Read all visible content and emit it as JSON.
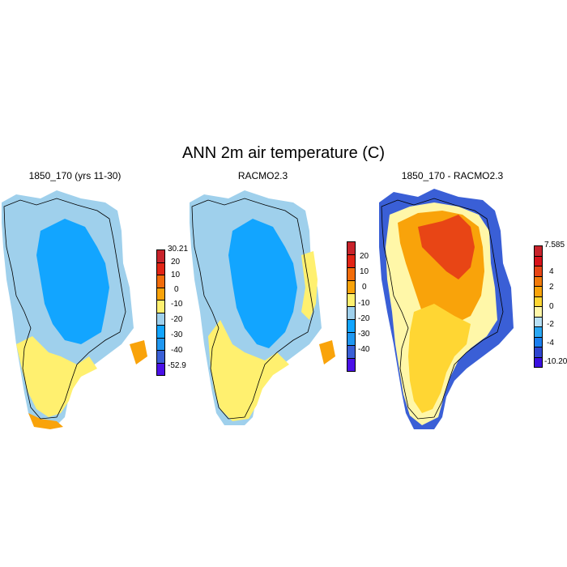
{
  "title": "ANN 2m air temperature (C)",
  "panels": [
    {
      "title": "1850_170 (yrs 11-30)",
      "palette": [
        "#4a10e8",
        "#3a5fd6",
        "#1f97f0",
        "#12a5ff",
        "#9fd0ec",
        "#fff06f",
        "#f9a30a",
        "#f26c0a",
        "#e22415",
        "#c8232b"
      ],
      "labels": [
        "30.21",
        "20",
        "10",
        "0",
        "-10",
        "-20",
        "-30",
        "-40",
        "-52.9"
      ],
      "fills": {
        "interior": "#12a5ff",
        "middle": "#9fd0ec",
        "coast": "#fff06f",
        "edge": "#f9a30a"
      }
    },
    {
      "title": "RACMO2.3",
      "palette": [
        "#4a10e8",
        "#3a5fd6",
        "#1f97f0",
        "#12a5ff",
        "#9fd0ec",
        "#fff06f",
        "#f9a30a",
        "#f26c0a",
        "#e22415",
        "#c8232b"
      ],
      "labels": [
        "20",
        "10",
        "0",
        "-10",
        "-20",
        "-30",
        "-40"
      ],
      "fills": {
        "interior": "#12a5ff",
        "middle": "#9fd0ec",
        "coast": "#fff06f",
        "edge": "#f9a30a"
      }
    },
    {
      "title": "1850_170 - RACMO2.3",
      "palette": [
        "#3a10e0",
        "#2e45d0",
        "#1a7ff0",
        "#2aa8f5",
        "#b8e0f5",
        "#fff7a8",
        "#ffd633",
        "#f9a30a",
        "#f27a0a",
        "#e84515",
        "#d8121a",
        "#c8232b"
      ],
      "labels": [
        "7.585",
        "4",
        "2",
        "0",
        "-2",
        "-4",
        "-10.20"
      ],
      "fills": {
        "interior": "#ffd633",
        "middle": "#f9a30a",
        "coast": "#fff7a8",
        "edge": "#3a5fd6",
        "hot": "#e84515"
      }
    }
  ]
}
